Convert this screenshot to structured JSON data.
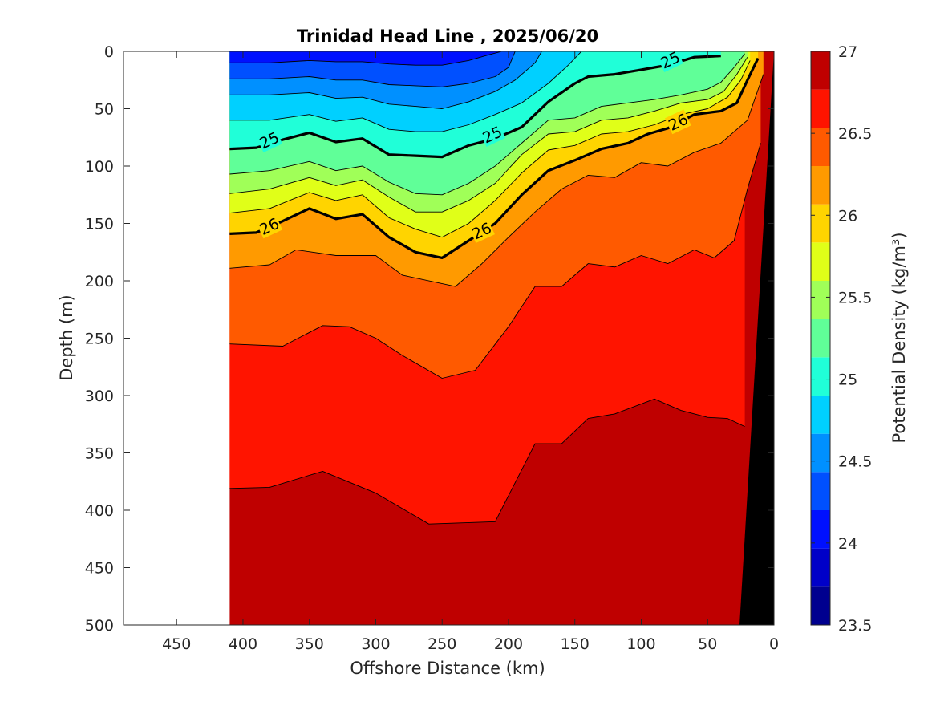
{
  "chart_data": {
    "type": "heatmap",
    "subtype": "filled-contour",
    "title": "Trinidad Head Line , 2025/06/20",
    "xlabel": "Offshore Distance (km)",
    "ylabel": "Depth (m)",
    "colorbar_label": "Potential Density (kg/m³)",
    "xlim": [
      490,
      0
    ],
    "ylim": [
      500,
      0
    ],
    "x_reversed": true,
    "y_reversed": true,
    "x_ticks": [
      "450",
      "400",
      "350",
      "300",
      "250",
      "200",
      "150",
      "100",
      "50",
      "0"
    ],
    "x_tick_values": [
      450,
      400,
      350,
      300,
      250,
      200,
      150,
      100,
      50,
      0
    ],
    "y_ticks": [
      "0",
      "50",
      "100",
      "150",
      "200",
      "250",
      "300",
      "350",
      "400",
      "450",
      "500"
    ],
    "y_tick_values": [
      0,
      50,
      100,
      150,
      200,
      250,
      300,
      350,
      400,
      450,
      500
    ],
    "colorbar": {
      "min": 23.5,
      "max": 27,
      "tick_labels": [
        "27",
        "26.5",
        "26",
        "25.5",
        "25",
        "24.5",
        "24",
        "23.5"
      ],
      "tick_values": [
        27,
        26.5,
        26,
        25.5,
        25,
        24.5,
        24,
        23.5
      ],
      "levels": [
        23.5,
        23.75,
        24,
        24.25,
        24.5,
        24.75,
        25,
        25.25,
        25.5,
        25.75,
        26,
        26.25,
        26.5,
        26.75,
        27
      ],
      "colors": [
        "#00008f",
        "#0000c8",
        "#0010ff",
        "#0050ff",
        "#0090ff",
        "#00d0ff",
        "#20ffd8",
        "#60ff98",
        "#a0ff58",
        "#e0ff18",
        "#ffd400",
        "#ff9a00",
        "#ff5a00",
        "#ff1400",
        "#bf0000"
      ]
    },
    "data_extent_km": [
      0,
      410
    ],
    "contours": [
      {
        "level": 26.75,
        "points": [
          [
            410,
            381
          ],
          [
            380,
            380
          ],
          [
            340,
            366
          ],
          [
            300,
            385
          ],
          [
            260,
            412
          ],
          [
            210,
            410
          ],
          [
            180,
            342
          ],
          [
            160,
            342
          ],
          [
            140,
            320
          ],
          [
            120,
            316
          ],
          [
            90,
            303
          ],
          [
            70,
            313
          ],
          [
            50,
            319
          ],
          [
            35,
            320
          ],
          [
            22,
            327
          ]
        ]
      },
      {
        "level": 26.5,
        "points": [
          [
            410,
            255
          ],
          [
            370,
            257
          ],
          [
            340,
            239
          ],
          [
            320,
            240
          ],
          [
            300,
            250
          ],
          [
            280,
            265
          ],
          [
            250,
            285
          ],
          [
            225,
            278
          ],
          [
            200,
            240
          ],
          [
            180,
            205
          ],
          [
            160,
            205
          ],
          [
            140,
            185
          ],
          [
            120,
            188
          ],
          [
            100,
            178
          ],
          [
            80,
            185
          ],
          [
            60,
            173
          ],
          [
            45,
            180
          ],
          [
            30,
            165
          ],
          [
            20,
            120
          ],
          [
            10,
            80
          ]
        ]
      },
      {
        "level": 26.25,
        "points": [
          [
            410,
            189
          ],
          [
            380,
            186
          ],
          [
            360,
            173
          ],
          [
            330,
            178
          ],
          [
            300,
            178
          ],
          [
            280,
            195
          ],
          [
            240,
            205
          ],
          [
            220,
            185
          ],
          [
            200,
            162
          ],
          [
            180,
            140
          ],
          [
            160,
            120
          ],
          [
            140,
            108
          ],
          [
            120,
            110
          ],
          [
            100,
            97
          ],
          [
            80,
            100
          ],
          [
            60,
            88
          ],
          [
            40,
            80
          ],
          [
            20,
            60
          ],
          [
            8,
            20
          ]
        ]
      },
      {
        "level": 26.0,
        "points": [
          [
            410,
            159
          ],
          [
            390,
            158
          ],
          [
            370,
            148
          ],
          [
            350,
            137
          ],
          [
            330,
            146
          ],
          [
            310,
            142
          ],
          [
            290,
            162
          ],
          [
            270,
            175
          ],
          [
            250,
            180
          ],
          [
            230,
            165
          ],
          [
            210,
            150
          ],
          [
            190,
            125
          ],
          [
            170,
            104
          ],
          [
            150,
            95
          ],
          [
            130,
            85
          ],
          [
            110,
            80
          ],
          [
            95,
            72
          ],
          [
            80,
            67
          ],
          [
            60,
            55
          ],
          [
            40,
            52
          ],
          [
            28,
            45
          ],
          [
            20,
            25
          ],
          [
            12,
            6
          ]
        ]
      },
      {
        "level": 25.75,
        "points": [
          [
            410,
            141
          ],
          [
            380,
            137
          ],
          [
            350,
            123
          ],
          [
            330,
            130
          ],
          [
            310,
            125
          ],
          [
            290,
            145
          ],
          [
            270,
            155
          ],
          [
            250,
            162
          ],
          [
            230,
            150
          ],
          [
            210,
            130
          ],
          [
            190,
            106
          ],
          [
            170,
            86
          ],
          [
            150,
            82
          ],
          [
            130,
            72
          ],
          [
            110,
            70
          ],
          [
            90,
            64
          ],
          [
            70,
            55
          ],
          [
            50,
            50
          ],
          [
            35,
            40
          ],
          [
            25,
            25
          ],
          [
            18,
            8
          ]
        ]
      },
      {
        "level": 25.5,
        "points": [
          [
            410,
            124
          ],
          [
            380,
            120
          ],
          [
            350,
            110
          ],
          [
            330,
            117
          ],
          [
            310,
            112
          ],
          [
            290,
            127
          ],
          [
            270,
            140
          ],
          [
            250,
            140
          ],
          [
            230,
            130
          ],
          [
            210,
            115
          ],
          [
            190,
            90
          ],
          [
            170,
            72
          ],
          [
            150,
            70
          ],
          [
            130,
            60
          ],
          [
            110,
            58
          ],
          [
            90,
            52
          ],
          [
            70,
            45
          ],
          [
            50,
            42
          ],
          [
            38,
            35
          ],
          [
            28,
            20
          ],
          [
            20,
            5
          ]
        ]
      },
      {
        "level": 25.25,
        "points": [
          [
            410,
            107
          ],
          [
            380,
            104
          ],
          [
            350,
            96
          ],
          [
            330,
            104
          ],
          [
            310,
            100
          ],
          [
            290,
            114
          ],
          [
            270,
            124
          ],
          [
            250,
            125
          ],
          [
            230,
            115
          ],
          [
            210,
            100
          ],
          [
            190,
            80
          ],
          [
            170,
            60
          ],
          [
            150,
            58
          ],
          [
            130,
            48
          ],
          [
            110,
            45
          ],
          [
            90,
            42
          ],
          [
            70,
            38
          ],
          [
            50,
            33
          ],
          [
            40,
            27
          ],
          [
            30,
            14
          ],
          [
            22,
            2
          ]
        ]
      },
      {
        "level": 25.0,
        "points": [
          [
            410,
            85
          ],
          [
            390,
            84
          ],
          [
            370,
            77
          ],
          [
            350,
            71
          ],
          [
            330,
            79
          ],
          [
            310,
            76
          ],
          [
            290,
            90
          ],
          [
            270,
            91
          ],
          [
            250,
            92
          ],
          [
            230,
            82
          ],
          [
            210,
            76
          ],
          [
            190,
            66
          ],
          [
            170,
            44
          ],
          [
            150,
            28
          ],
          [
            140,
            22
          ],
          [
            120,
            20
          ],
          [
            100,
            16
          ],
          [
            90,
            14
          ],
          [
            80,
            12
          ],
          [
            60,
            5
          ],
          [
            40,
            4
          ]
        ]
      },
      {
        "level": 24.75,
        "points": [
          [
            410,
            60
          ],
          [
            380,
            60
          ],
          [
            350,
            55
          ],
          [
            330,
            61
          ],
          [
            310,
            58
          ],
          [
            290,
            68
          ],
          [
            270,
            70
          ],
          [
            250,
            70
          ],
          [
            230,
            64
          ],
          [
            210,
            55
          ],
          [
            190,
            45
          ],
          [
            170,
            28
          ],
          [
            155,
            12
          ],
          [
            145,
            0
          ]
        ]
      },
      {
        "level": 24.5,
        "points": [
          [
            410,
            38
          ],
          [
            380,
            38
          ],
          [
            350,
            36
          ],
          [
            330,
            41
          ],
          [
            310,
            40
          ],
          [
            290,
            46
          ],
          [
            270,
            48
          ],
          [
            250,
            50
          ],
          [
            230,
            44
          ],
          [
            210,
            35
          ],
          [
            195,
            25
          ],
          [
            180,
            10
          ],
          [
            175,
            0
          ]
        ]
      },
      {
        "level": 24.25,
        "points": [
          [
            410,
            24
          ],
          [
            380,
            24
          ],
          [
            350,
            22
          ],
          [
            330,
            25
          ],
          [
            310,
            25
          ],
          [
            290,
            29
          ],
          [
            270,
            30
          ],
          [
            250,
            31
          ],
          [
            230,
            28
          ],
          [
            210,
            22
          ],
          [
            200,
            14
          ],
          [
            195,
            0
          ]
        ]
      },
      {
        "level": 24.0,
        "points": [
          [
            410,
            10
          ],
          [
            380,
            10
          ],
          [
            350,
            8
          ],
          [
            330,
            9
          ],
          [
            310,
            9
          ],
          [
            290,
            11
          ],
          [
            270,
            12
          ],
          [
            250,
            12
          ],
          [
            230,
            8
          ],
          [
            215,
            3
          ],
          [
            205,
            0
          ]
        ]
      }
    ],
    "bold_contours_labeled": [
      {
        "label": "25",
        "level": 25.0,
        "label_position_km": [
          380,
          78
        ]
      },
      {
        "label": "25",
        "level": 25.0,
        "label_position_km": [
          212,
          73
        ]
      },
      {
        "label": "25",
        "level": 25.0,
        "label_position_km": [
          78,
          8
        ]
      },
      {
        "label": "26",
        "level": 26.0,
        "label_position_km": [
          380,
          153
        ]
      },
      {
        "label": "26",
        "level": 26.0,
        "label_position_km": [
          220,
          157
        ]
      },
      {
        "label": "26",
        "level": 26.0,
        "label_position_km": [
          72,
          62
        ]
      }
    ],
    "bathymetry_color": "#000000",
    "no_data_color": "#ffffff"
  }
}
